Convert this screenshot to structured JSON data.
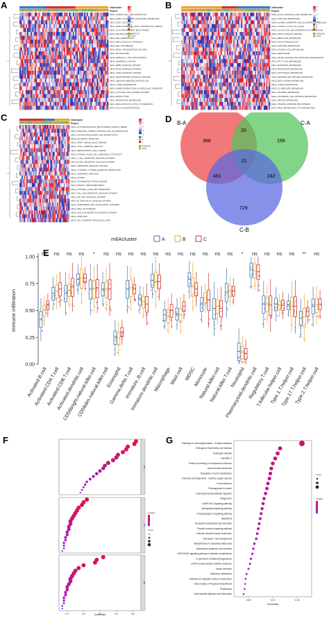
{
  "panel_labels": {
    "a": "A",
    "b": "B",
    "c": "C",
    "d": "D",
    "e": "E",
    "f": "F",
    "g": "G"
  },
  "colors": {
    "heat_high": "#e0202a",
    "heat_low": "#2b35b8",
    "heat_mid": "#ffffff",
    "cluster_a": "#3d77b8",
    "cluster_b": "#e9a43a",
    "cluster_c": "#cc3333",
    "project_geo": "#66bb6a",
    "project_tcga": "#ee9a3a"
  },
  "heatmap_legend": {
    "cluster_title": "m6Acluster",
    "project_title": "Project",
    "cluster_items": [
      "A",
      "B",
      "C"
    ],
    "project_items": [
      "GSE31210",
      "TCGA"
    ],
    "scale_ticks": [
      "2",
      "1",
      "0",
      "-1",
      "-2"
    ]
  },
  "heatmaps": [
    {
      "id": "A",
      "rows": [
        "KEGG_CARDIAC_MUSCLE_CONTRACTION",
        "KEGG_AMINO_SUGAR_AND_NUCLEOTIDE_METABOLISM",
        "KEGG_TIGHT_JUNCTION",
        "KEGG_ARRHYTHMOGENIC_RIGHT_VENTRICULAR_CARDIOMYOPATHY",
        "KEGG_GLYCOSPHINGOLIPID_BIOSYNTHESIS",
        "KEGG_PROTEIN_EXPORT",
        "KEGG_RNA_DEGRADATION",
        "KEGG_REGULATION_OF_AUTOPHAGY",
        "KEGG_RNA_POLYMERASE",
        "KEGG_BASAL_TRANSCRIPTION_FACTORS",
        "KEGG_SPLICEOSOME",
        "KEGG_AMINOACYL_TRNA_BIOSYNTHESIS",
        "KEGG_ADHERENS_JUNCTION",
        "KEGG_ERBB_SIGNALING_PATHWAY",
        "KEGG_MTOR_SIGNALING_PATHWAY",
        "KEGG_GNRH_SIGNALING_PATHWAY",
        "KEGG_NEUROTROPHIN_SIGNALING_PATHWAY",
        "KEGG_UBIQUITIN_MEDIATED_PROTEOLYSIS",
        "KEGG_LYSINE_DEGRADATION",
        "KEGG_SNARE_INTERACTIONS_IN_VESICULAR_TRANSPORT",
        "KEGG_CYTOSOLIC_DNA_SENSING_PATHWAY",
        "KEGG_ENDOCYTOSIS",
        "KEGG_PROPANOATE_METABOLISM",
        "KEGG_REGULATION_OF_ACTIN_CYTOSKELETON",
        "KEGG_N_GLYCAN_BIOSYNTHESIS"
      ]
    },
    {
      "id": "B",
      "rows": [
        "KEGG_ALPHA_LINOLENIC_ACID_METABOLISM",
        "KEGG_PYRUVATE_METABOLISM",
        "KEGG_ALANINE_ASPARTATE_AND_GLUTAMATE_METABOLISM",
        "KEGG_CITRATE_CYCLE_TCA_CYCLE",
        "KEGG_GLYOXYLATE_AND_DICARBOXYLATE_METABOLISM",
        "KEGG_PPAR_SIGNALING_PATHWAY",
        "KEGG_RIBOFLAVIN_METABOLISM",
        "KEGG_PHOTOTRANSDUCTION",
        "KEGG_NITROGEN_METABOLISM",
        "KEGG_LINOLEIC_ACID_METABOLISM",
        "KEGG_PEROXISOME",
        "KEGG_VALINE_LEUCINE_AND_ISOLEUCINE_DEGRADATION",
        "KEGG_FATTY_ACID_METABOLISM",
        "KEGG_BUTANOATE_METABOLISM",
        "KEGG_PROPANOATE_METABOLISM",
        "KEGG_TRYPTOPHAN_METABOLISM",
        "KEGG_ARGININE_AND_PROLINE_METABOLISM",
        "KEGG_BETA_ALANINE_METABOLISM",
        "KEGG_LYSINE_DEGRADATION",
        "KEGG_GLYCEROLIPID_METABOLISM",
        "KEGG_HISTIDINE_METABOLISM",
        "KEGG_ASCORBATE_AND_ALDARATE_METABOLISM",
        "KEGG_RETINOL_METABOLISM",
        "KEGG_STEROID_HORMONE_BIOSYNTHESIS",
        "KEGG_DRUG_METABOLISM_CYTOCHROME_P450"
      ]
    },
    {
      "id": "C",
      "rows": [
        "KEGG_GLYCOSPHINGOLIPID_BIOSYNTHESIS_GANGLIO_SERIES",
        "KEGG_INTESTINAL_IMMUNE_NETWORK_FOR_IGA_PRODUCTION",
        "KEGG_ANTIGEN_PROCESSING_AND_PRESENTATION",
        "KEGG_ALLOGRAFT_REJECTION",
        "KEGG_GRAFT_VERSUS_HOST_DISEASE",
        "KEGG_TYPE_I_DIABETES_MELLITUS",
        "KEGG_HEMATOPOIETIC_CELL_LINEAGE",
        "KEGG_NATURAL_KILLER_CELL_MEDIATED_CYTOTOXICITY",
        "KEGG_T_CELL_RECEPTOR_SIGNALING_PATHWAY",
        "KEGG_B_CELL_RECEPTOR_SIGNALING_PATHWAY",
        "KEGG_CHEMOKINE_SIGNALING_PATHWAY",
        "KEGG_CYTOKINE_CYTOKINE_RECEPTOR_INTERACTION",
        "KEGG_LEISHMANIA_INFECTION",
        "KEGG_ASTHMA",
        "KEGG_AUTOIMMUNE_THYROID_DISEASE",
        "KEGG_PRIMARY_IMMUNODEFICIENCY",
        "KEGG_SYSTEMIC_LUPUS_ERYTHEMATOSUS",
        "KEGG_TOLL_LIKE_RECEPTOR_SIGNALING_PATHWAY",
        "KEGG_JAK_STAT_SIGNALING_PATHWAY",
        "KEGG_FC_EPSILON_RI_SIGNALING_PATHWAY",
        "KEGG_COMPLEMENT_AND_COAGULATION_CASCADES",
        "KEGG_VIRAL_MYOCARDITIS",
        "KEGG_NOD_LIKE_RECEPTOR_SIGNALING_PATHWAY",
        "KEGG_APOPTOSIS",
        "KEGG_CELL_ADHESION_MOLECULES_CAMS"
      ]
    }
  ],
  "venn": {
    "labels": {
      "ba": "B-A",
      "ca": "C-A",
      "cb": "C-B"
    },
    "regions": {
      "ba_only": "388",
      "ca_only": "199",
      "cb_only": "729",
      "ba_ca": "20",
      "ca_cb": "242",
      "ba_cb": "461",
      "all": "21"
    },
    "colors": {
      "ba": "#f06a6a",
      "ca": "#52c35a",
      "cb": "#5a66e0"
    }
  },
  "chart_data": [
    {
      "type": "box",
      "title": "m6Acluster",
      "xlabel": "",
      "ylabel": "Immune infiltration",
      "ylim": [
        0,
        1.0
      ],
      "yticks": [
        "0.00",
        "0.25",
        "0.50",
        "0.75",
        "1.00"
      ],
      "legend_title": "m6Acluster",
      "series_names": [
        "A",
        "B",
        "C"
      ],
      "categories": [
        "Activated.B.cell",
        "Activated.CD4.T.cell",
        "Activated.CD8.T.cell",
        "Activated.dendritic.cell",
        "CD56bright.natural.killer.cell",
        "CD56dim.natural.killer.cell",
        "Eosinophil",
        "Gamma.delta.T.cell",
        "Immature..B.cell",
        "Immature.dendritic.cell",
        "Macrophage",
        "Mast.cell",
        "MDSC",
        "Monocyte",
        "Natural.killer.cell",
        "Natural.killer.T.cell",
        "Neutrophil",
        "Plasmacytoid.dendritic.cell",
        "Regulatory.T.cell",
        "T.follicular.helper.cell",
        "Type.1.T.helper.cell",
        "Type.17.T.helper.cell",
        "Type.2.T.helper.cell"
      ],
      "significance": [
        "ns",
        "ns",
        "ns",
        "ns",
        "*",
        "ns",
        "ns",
        "ns",
        "ns",
        "ns",
        "ns",
        "ns",
        "ns",
        "ns",
        "ns",
        "ns",
        "*",
        "ns",
        "ns",
        "ns",
        "ns",
        "**",
        "ns"
      ],
      "medians": [
        [
          0.42,
          0.5,
          0.55
        ],
        [
          0.66,
          0.68,
          0.7
        ],
        [
          0.66,
          0.69,
          0.72
        ],
        [
          0.79,
          0.8,
          0.8
        ],
        [
          0.7,
          0.7,
          0.71
        ],
        [
          0.7,
          0.7,
          0.7
        ],
        [
          0.25,
          0.24,
          0.3
        ],
        [
          0.7,
          0.71,
          0.7
        ],
        [
          0.6,
          0.58,
          0.56
        ],
        [
          0.78,
          0.77,
          0.77
        ],
        [
          0.46,
          0.45,
          0.5
        ],
        [
          0.47,
          0.46,
          0.54
        ],
        [
          0.79,
          0.72,
          0.7
        ],
        [
          0.56,
          0.62,
          0.6
        ],
        [
          0.52,
          0.54,
          0.52
        ],
        [
          0.67,
          0.68,
          0.68
        ],
        [
          0.12,
          0.11,
          0.1
        ],
        [
          0.88,
          0.87,
          0.86
        ],
        [
          0.56,
          0.56,
          0.55
        ],
        [
          0.56,
          0.55,
          0.55
        ],
        [
          0.55,
          0.54,
          0.54
        ],
        [
          0.43,
          0.44,
          0.49
        ],
        [
          0.54,
          0.55,
          0.56
        ]
      ]
    },
    {
      "type": "scatter",
      "title": "",
      "xlabel": "GeneRatio",
      "xticks": [
        "0.1",
        "0.2",
        "0.3",
        "0.4",
        "0.5"
      ],
      "xlim": [
        0.05,
        0.55
      ],
      "size_legend_title": "Count",
      "color_legend_title": "p.adjust",
      "facets": [
        "BP",
        "CC",
        "MF"
      ],
      "points": [
        {
          "facet": 0,
          "x": 0.52,
          "rank": 0
        },
        {
          "facet": 0,
          "x": 0.51,
          "rank": 1
        },
        {
          "facet": 0,
          "x": 0.47,
          "rank": 2
        },
        {
          "facet": 0,
          "x": 0.46,
          "rank": 3
        },
        {
          "facet": 0,
          "x": 0.44,
          "rank": 4
        },
        {
          "facet": 0,
          "x": 0.41,
          "rank": 5
        },
        {
          "facet": 0,
          "x": 0.4,
          "rank": 6
        },
        {
          "facet": 0,
          "x": 0.38,
          "rank": 7
        },
        {
          "facet": 0,
          "x": 0.35,
          "rank": 8
        },
        {
          "facet": 0,
          "x": 0.33,
          "rank": 9
        },
        {
          "facet": 0,
          "x": 0.32,
          "rank": 10
        },
        {
          "facet": 0,
          "x": 0.3,
          "rank": 11
        },
        {
          "facet": 0,
          "x": 0.28,
          "rank": 12
        },
        {
          "facet": 0,
          "x": 0.26,
          "rank": 13
        },
        {
          "facet": 0,
          "x": 0.24,
          "rank": 14
        },
        {
          "facet": 0,
          "x": 0.22,
          "rank": 15
        },
        {
          "facet": 0,
          "x": 0.21,
          "rank": 16
        },
        {
          "facet": 0,
          "x": 0.2,
          "rank": 17
        },
        {
          "facet": 0,
          "x": 0.19,
          "rank": 18
        },
        {
          "facet": 0,
          "x": 0.18,
          "rank": 19
        },
        {
          "facet": 1,
          "x": 0.22,
          "rank": 0
        },
        {
          "facet": 1,
          "x": 0.2,
          "rank": 1
        },
        {
          "facet": 1,
          "x": 0.19,
          "rank": 2
        },
        {
          "facet": 1,
          "x": 0.17,
          "rank": 3
        },
        {
          "facet": 1,
          "x": 0.16,
          "rank": 4
        },
        {
          "facet": 1,
          "x": 0.15,
          "rank": 5
        },
        {
          "facet": 1,
          "x": 0.14,
          "rank": 6
        },
        {
          "facet": 1,
          "x": 0.13,
          "rank": 7
        },
        {
          "facet": 1,
          "x": 0.12,
          "rank": 8
        },
        {
          "facet": 1,
          "x": 0.12,
          "rank": 9
        },
        {
          "facet": 1,
          "x": 0.11,
          "rank": 10
        },
        {
          "facet": 1,
          "x": 0.11,
          "rank": 11
        },
        {
          "facet": 1,
          "x": 0.1,
          "rank": 12
        },
        {
          "facet": 1,
          "x": 0.1,
          "rank": 13
        },
        {
          "facet": 1,
          "x": 0.09,
          "rank": 14
        },
        {
          "facet": 1,
          "x": 0.09,
          "rank": 15
        },
        {
          "facet": 1,
          "x": 0.08,
          "rank": 16
        },
        {
          "facet": 1,
          "x": 0.08,
          "rank": 17
        },
        {
          "facet": 1,
          "x": 0.08,
          "rank": 18
        },
        {
          "facet": 1,
          "x": 0.07,
          "rank": 19
        },
        {
          "facet": 2,
          "x": 0.32,
          "rank": 0
        },
        {
          "facet": 2,
          "x": 0.28,
          "rank": 1
        },
        {
          "facet": 2,
          "x": 0.27,
          "rank": 2
        },
        {
          "facet": 2,
          "x": 0.2,
          "rank": 3
        },
        {
          "facet": 2,
          "x": 0.17,
          "rank": 4
        },
        {
          "facet": 2,
          "x": 0.15,
          "rank": 5
        },
        {
          "facet": 2,
          "x": 0.14,
          "rank": 6
        },
        {
          "facet": 2,
          "x": 0.13,
          "rank": 7
        },
        {
          "facet": 2,
          "x": 0.12,
          "rank": 8
        },
        {
          "facet": 2,
          "x": 0.12,
          "rank": 9
        },
        {
          "facet": 2,
          "x": 0.11,
          "rank": 10
        },
        {
          "facet": 2,
          "x": 0.1,
          "rank": 11
        },
        {
          "facet": 2,
          "x": 0.1,
          "rank": 12
        },
        {
          "facet": 2,
          "x": 0.09,
          "rank": 13
        },
        {
          "facet": 2,
          "x": 0.09,
          "rank": 14
        },
        {
          "facet": 2,
          "x": 0.08,
          "rank": 15
        },
        {
          "facet": 2,
          "x": 0.08,
          "rank": 16
        },
        {
          "facet": 2,
          "x": 0.08,
          "rank": 17
        },
        {
          "facet": 2,
          "x": 0.07,
          "rank": 18
        },
        {
          "facet": 2,
          "x": 0.07,
          "rank": 19
        }
      ]
    },
    {
      "type": "scatter",
      "title": "",
      "xlabel": "GeneRatio",
      "xticks": [
        "0.05",
        "0.10",
        "0.15"
      ],
      "xlim": [
        0.02,
        0.18
      ],
      "size_legend_title": "Count",
      "color_legend_title": "p.adjust",
      "categories": [
        "Pathways of neurodegeneration - multiple diseases",
        "Pathogenic Escherichia coli infection",
        "Huntington disease",
        "Hepatitis C",
        "Protein processing in endoplasmic reticulum",
        "Lipid and atherosclerosis",
        "Regulation of actin cytoskeleton",
        "Chemical carcinogenesis - reactive oxygen species",
        "Focal adhesion",
        "Proteoglycans in cancer",
        "Leukocyte transendothelial migration",
        "Phagosome",
        "cGMP-PKG signaling pathway",
        "Sphingolipid signaling pathway",
        "Phospholipase D signaling pathway",
        "Hepatitis B",
        "Neutrophil extracellular trap formation",
        "Thyroid hormone signaling pathway",
        "Vascular smooth muscle contraction",
        "Glycolysis / Gluconeogenesis",
        "Biosynthesis of unsaturated fatty acids",
        "Aldosterone synthesis and secretion",
        "AGE-RAGE signaling pathway in diabetic complications",
        "Fc gamma R-mediated phagocytosis",
        "EGFR tyrosine kinase inhibitor resistance",
        "Insulin secretion",
        "Galactose metabolism",
        "Aldosterone-regulated sodium reabsorption",
        "Various types of N-glycan biosynthesis",
        "Proteasome",
        "Carbohydrate digestion and absorption"
      ],
      "x": [
        0.16,
        0.115,
        0.11,
        0.105,
        0.1,
        0.097,
        0.095,
        0.093,
        0.09,
        0.088,
        0.085,
        0.082,
        0.08,
        0.078,
        0.076,
        0.074,
        0.072,
        0.07,
        0.068,
        0.066,
        0.062,
        0.06,
        0.058,
        0.055,
        0.053,
        0.05,
        0.046,
        0.044,
        0.043,
        0.042,
        0.04
      ]
    }
  ]
}
